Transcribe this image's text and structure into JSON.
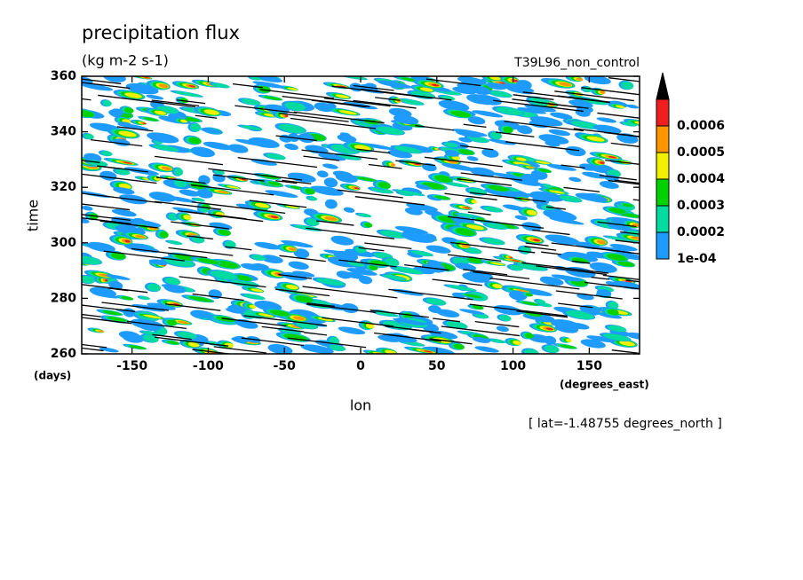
{
  "chart_data": {
    "type": "contour",
    "title": "precipitation flux",
    "subtitle": "(kg m-2 s-1)",
    "experiment": "T39L96_non_control",
    "xlabel": "lon",
    "ylabel": "time",
    "xunits": "(degrees_east)",
    "yunits": "(days)",
    "annotation": "[ lat=-1.48755 degrees_north ]",
    "xlim": [
      -183,
      183
    ],
    "xticks": [
      -150,
      -100,
      -50,
      0,
      50,
      100,
      150
    ],
    "ylim": [
      260,
      360
    ],
    "yticks": [
      260,
      280,
      300,
      320,
      340,
      360
    ],
    "levels": [
      {
        "value": 0.0001,
        "label": "1e-04"
      },
      0.0002,
      0.0003,
      0.0004,
      0.0005,
      0.0006
    ],
    "colors": [
      "#1e9bff",
      "#00dca0",
      "#00d200",
      "#f0f000",
      "#ff9600",
      "#f01e1e"
    ]
  }
}
